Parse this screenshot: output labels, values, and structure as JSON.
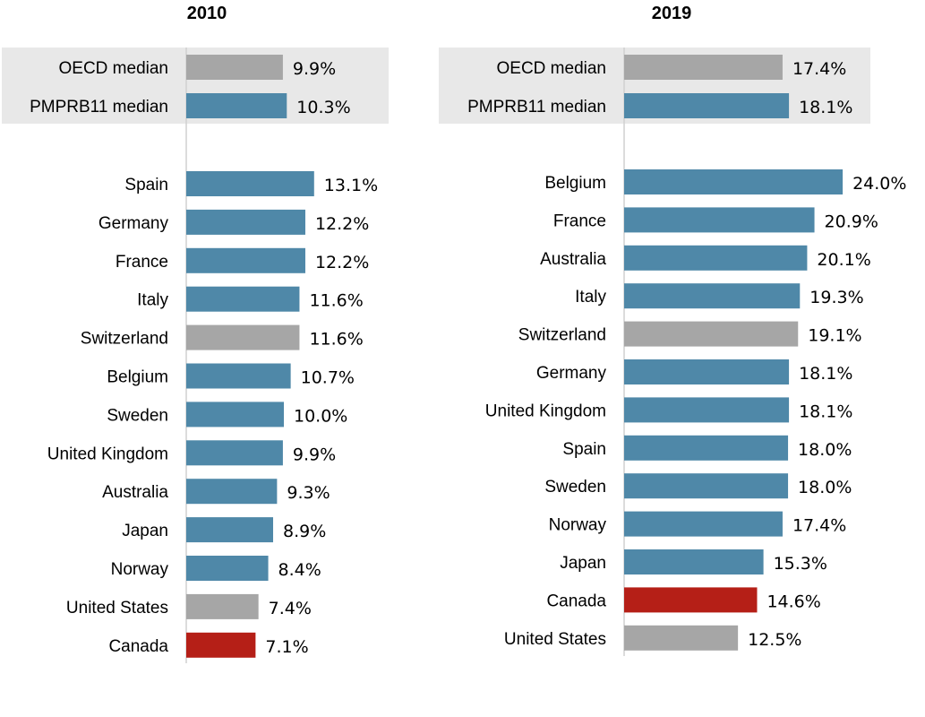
{
  "chart_data": [
    {
      "type": "bar",
      "orientation": "horizontal",
      "title": "2010",
      "xlabel": "",
      "ylabel": "",
      "unit": "%",
      "grid": false,
      "xlim": [
        0,
        15
      ],
      "benchmarks": [
        {
          "label": "OECD median",
          "value": 9.9,
          "display": "9.9%",
          "color": "#a6a6a6"
        },
        {
          "label": "PMPRB11 median",
          "value": 10.3,
          "display": "10.3%",
          "color": "#4f88a8"
        }
      ],
      "categories": [
        "Spain",
        "Germany",
        "France",
        "Italy",
        "Switzerland",
        "Belgium",
        "Sweden",
        "United Kingdom",
        "Australia",
        "Japan",
        "Norway",
        "United States",
        "Canada"
      ],
      "values": [
        13.1,
        12.2,
        12.2,
        11.6,
        11.6,
        10.7,
        10.0,
        9.9,
        9.3,
        8.9,
        8.4,
        7.4,
        7.1
      ],
      "labels": [
        "13.1%",
        "12.2%",
        "12.2%",
        "11.6%",
        "11.6%",
        "10.7%",
        "10.0%",
        "9.9%",
        "9.3%",
        "8.9%",
        "8.4%",
        "7.4%",
        "7.1%"
      ],
      "colors": [
        "#4f88a8",
        "#4f88a8",
        "#4f88a8",
        "#4f88a8",
        "#a6a6a6",
        "#4f88a8",
        "#4f88a8",
        "#4f88a8",
        "#4f88a8",
        "#4f88a8",
        "#4f88a8",
        "#a6a6a6",
        "#b51f17"
      ]
    },
    {
      "type": "bar",
      "orientation": "horizontal",
      "title": "2019",
      "xlabel": "",
      "ylabel": "",
      "unit": "%",
      "grid": false,
      "xlim": [
        0,
        28
      ],
      "benchmarks": [
        {
          "label": "OECD median",
          "value": 17.4,
          "display": "17.4%",
          "color": "#a6a6a6"
        },
        {
          "label": "PMPRB11 median",
          "value": 18.1,
          "display": "18.1%",
          "color": "#4f88a8"
        }
      ],
      "categories": [
        "Belgium",
        "France",
        "Australia",
        "Italy",
        "Switzerland",
        "Germany",
        "United Kingdom",
        "Spain",
        "Sweden",
        "Norway",
        "Japan",
        "Canada",
        "United States"
      ],
      "values": [
        24.0,
        20.9,
        20.1,
        19.3,
        19.1,
        18.1,
        18.1,
        18.0,
        18.0,
        17.4,
        15.3,
        14.6,
        12.5
      ],
      "labels": [
        "24.0%",
        "20.9%",
        "20.1%",
        "19.3%",
        "19.1%",
        "18.1%",
        "18.1%",
        "18.0%",
        "18.0%",
        "17.4%",
        "15.3%",
        "14.6%",
        "12.5%"
      ],
      "colors": [
        "#4f88a8",
        "#4f88a8",
        "#4f88a8",
        "#4f88a8",
        "#a6a6a6",
        "#4f88a8",
        "#4f88a8",
        "#4f88a8",
        "#4f88a8",
        "#4f88a8",
        "#4f88a8",
        "#b51f17",
        "#a6a6a6"
      ]
    }
  ],
  "colors": {
    "benchmark_band": "#e8e8e8",
    "axis_line": "#d0d0d0"
  }
}
